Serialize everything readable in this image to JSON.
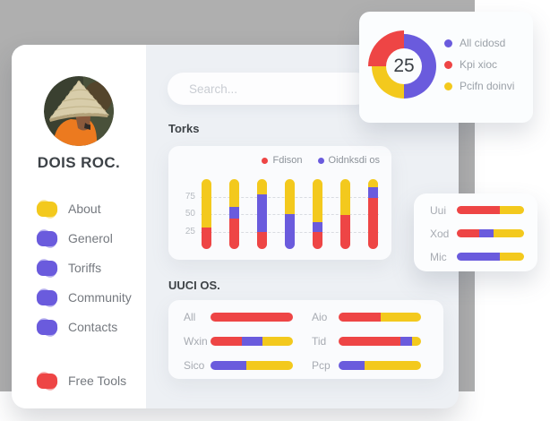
{
  "page": {
    "profile_name": "DOIS ROC.",
    "search_placeholder": "Search...",
    "torks_title": "Torks",
    "uuci_title": "UUCI OS."
  },
  "colors": {
    "red": "#ee4545",
    "yellow": "#f3c91d",
    "purple": "#6a5bdd",
    "gray_bg": "#afafaf",
    "panel_bg": "#edf0f4"
  },
  "sidebar": {
    "items": [
      {
        "label": "About",
        "color": "yellow"
      },
      {
        "label": "Generol",
        "color": "purple"
      },
      {
        "label": "Toriffs",
        "color": "purple"
      },
      {
        "label": "Community",
        "color": "purple"
      },
      {
        "label": "Contacts",
        "color": "purple"
      }
    ],
    "footer_item": {
      "label": "Free Tools",
      "color": "red"
    }
  },
  "chart_data": [
    {
      "type": "bar",
      "stacked": true,
      "title": "Torks",
      "legend": [
        {
          "label": "Fdison",
          "color": "red"
        },
        {
          "label": "Oidnksdi os",
          "color": "purple"
        }
      ],
      "y_ticks": [
        "75",
        "50",
        "25"
      ],
      "ylim": [
        0,
        100
      ],
      "grid": "horizontal-dashed",
      "bars": [
        {
          "red": 31,
          "purple": 0,
          "yellow": 69
        },
        {
          "red": 43,
          "purple": 17,
          "yellow": 40
        },
        {
          "red": 24,
          "purple": 54,
          "yellow": 22
        },
        {
          "red": 0,
          "purple": 50,
          "yellow": 50
        },
        {
          "red": 24,
          "purple": 15,
          "yellow": 61
        },
        {
          "red": 49,
          "purple": 0,
          "yellow": 51
        },
        {
          "red": 73,
          "purple": 15,
          "yellow": 12
        }
      ]
    },
    {
      "type": "pie",
      "donut": true,
      "center_value": "25",
      "segments": [
        {
          "label": "All cidosd",
          "color": "purple",
          "value": 50
        },
        {
          "label": "Pcifn doinvi",
          "color": "yellow",
          "value": 25
        },
        {
          "label": "Kpi xioc",
          "color": "red",
          "value": 25,
          "exploded": true
        }
      ],
      "legend": [
        {
          "label": "All cidosd",
          "color": "purple"
        },
        {
          "label": "Kpi xioc",
          "color": "red"
        },
        {
          "label": "Pcifn doinvi",
          "color": "yellow"
        }
      ]
    },
    {
      "type": "bar",
      "orientation": "horizontal",
      "title": "UUCI OS.",
      "rows": [
        {
          "label": "All",
          "segments": [
            {
              "color": "red",
              "pct": 100
            }
          ]
        },
        {
          "label": "Wxin",
          "segments": [
            {
              "color": "red",
              "pct": 38
            },
            {
              "color": "purple",
              "pct": 25
            },
            {
              "color": "yellow",
              "pct": 37
            }
          ]
        },
        {
          "label": "Sico",
          "segments": [
            {
              "color": "purple",
              "pct": 44
            },
            {
              "color": "yellow",
              "pct": 56
            }
          ]
        },
        {
          "label": "Aio",
          "segments": [
            {
              "color": "red",
              "pct": 51
            },
            {
              "color": "yellow",
              "pct": 49
            }
          ]
        },
        {
          "label": "Tid",
          "segments": [
            {
              "color": "red",
              "pct": 75
            },
            {
              "color": "purple",
              "pct": 14
            },
            {
              "color": "yellow",
              "pct": 11
            }
          ]
        },
        {
          "label": "Pcp",
          "segments": [
            {
              "color": "purple",
              "pct": 31
            },
            {
              "color": "yellow",
              "pct": 69
            }
          ]
        }
      ]
    },
    {
      "type": "bar",
      "orientation": "horizontal",
      "rows": [
        {
          "label": "Uui",
          "segments": [
            {
              "color": "red",
              "pct": 64
            },
            {
              "color": "yellow",
              "pct": 36
            }
          ]
        },
        {
          "label": "Xod",
          "segments": [
            {
              "color": "red",
              "pct": 33
            },
            {
              "color": "purple",
              "pct": 22
            },
            {
              "color": "yellow",
              "pct": 45
            }
          ]
        },
        {
          "label": "Mic",
          "segments": [
            {
              "color": "purple",
              "pct": 64
            },
            {
              "color": "yellow",
              "pct": 36
            }
          ]
        }
      ]
    }
  ]
}
